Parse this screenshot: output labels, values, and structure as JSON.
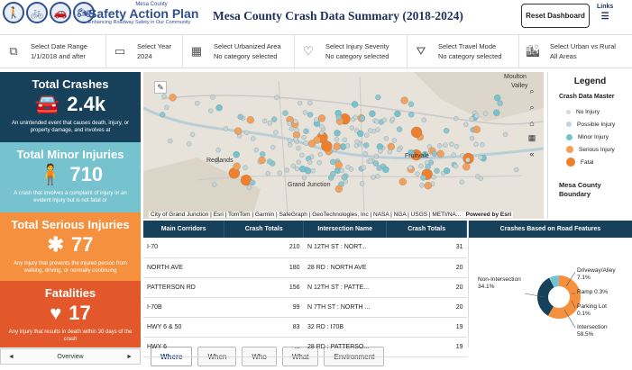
{
  "header": {
    "county_small": "Mesa County",
    "brand_title": "Safety Action Plan",
    "brand_tagline": "Enhancing Roadway Safety in Our Community",
    "page_title": "Mesa County Crash Data Summary (2018-2024)",
    "reset_label": "Reset Dashboard",
    "links_label": "Links"
  },
  "filters": [
    {
      "label": "Select Date Range",
      "value": "1/1/2018 and after",
      "icon": "calendar-range-icon"
    },
    {
      "label": "Select Year",
      "value": "2024",
      "icon": "calendar-icon"
    },
    {
      "label": "Select Urbanized Area",
      "value": "No category selected",
      "icon": "building-icon"
    },
    {
      "label": "Select Injury Severity",
      "value": "No category selected",
      "icon": "heartbeat-icon"
    },
    {
      "label": "Select Travel Mode",
      "value": "No category selected",
      "icon": "road-icon"
    },
    {
      "label": "Select Urban vs Rural",
      "value": "All Areas",
      "icon": "city-icon"
    }
  ],
  "kpis": [
    {
      "title": "Total Crashes",
      "value": "2.4k",
      "icon": "car-crash-icon",
      "desc": "An unintended event that causes death, injury, or property damage, and involves at",
      "color": "#17405a"
    },
    {
      "title": "Total Minor Injuries",
      "value": "710",
      "icon": "person-injury-icon",
      "desc": "A crash that involves a complaint of injury or an evident injury but is not fatal or",
      "color": "#77c2cf"
    },
    {
      "title": "Total Serious Injuries",
      "value": "77",
      "icon": "asterisk-icon",
      "desc": "Any injury that prevents the injured person from walking, driving, or normally continuing",
      "color": "#f5903e"
    },
    {
      "title": "Fatalities",
      "value": "17",
      "icon": "heart-break-icon",
      "desc": "Any injury that results in death within 30 days of the crash",
      "color": "#e2582a"
    }
  ],
  "nav": {
    "overview_label": "Overview",
    "prev": "◄",
    "next": "►"
  },
  "tabs": [
    "Where",
    "When",
    "Who",
    "What",
    "Environment"
  ],
  "map": {
    "credit": "City of Grand Junction | Esri | TomTom | Garmin | SafeGraph | GeoTechnologies, Inc | NASA | NGA | USGS | METI/NA...",
    "powered": "Powered by Esri",
    "labels": [
      "Moulton",
      "Valley",
      "Redlands",
      "Fruitvale",
      "Grand Junction"
    ]
  },
  "legend": {
    "title": "Legend",
    "subtitle": "Crash Data Master",
    "items": [
      {
        "label": "No Injury",
        "color": "#d9d9d9",
        "size": 5
      },
      {
        "label": "Possible Injury",
        "color": "#bcd6da",
        "size": 6
      },
      {
        "label": "Minor Injury",
        "color": "#77c2cf",
        "size": 7
      },
      {
        "label": "Serious Injury",
        "color": "#f5a05a",
        "size": 8
      },
      {
        "label": "Fatal",
        "color": "#f07f2c",
        "size": 10
      }
    ],
    "boundary": "Mesa County Boundary"
  },
  "corridors": {
    "headers": [
      "Main Corridors",
      "Crash Totals"
    ],
    "rows": [
      [
        "I-70",
        "210"
      ],
      [
        "NORTH AVE",
        "180"
      ],
      [
        "PATTERSON RD",
        "156"
      ],
      [
        "I-70B",
        "99"
      ],
      [
        "HWY 6 & 50",
        "83"
      ],
      [
        "HWY 6",
        "..."
      ]
    ]
  },
  "intersections": {
    "headers": [
      "Intersection Name",
      "Crash Totals"
    ],
    "rows": [
      [
        "N 12TH ST : NORT...",
        "31"
      ],
      [
        "28 RD : NORTH AVE",
        "20"
      ],
      [
        "N 12TH ST : PATTE...",
        "20"
      ],
      [
        "N 7TH ST : NORTH ...",
        "20"
      ],
      [
        "32 RD : I70B",
        "19"
      ],
      [
        "28 RD : PATTERSO...",
        "19"
      ]
    ]
  },
  "chart_data": {
    "type": "pie",
    "title": "Crashes Based on Road Features",
    "categories": [
      "Intersection",
      "Non-Intersection",
      "Driveway/Alley",
      "Ramp",
      "Parking Lot"
    ],
    "values": [
      58.5,
      34.1,
      7.1,
      0.3,
      0.1
    ],
    "labels": [
      "Intersection\n58.5%",
      "Non-\nIntersection\n34.1%",
      "Driveway/Alley\n7.1%",
      "Ramp 0.3%",
      "Parking Lot\n0.1%"
    ],
    "colors": [
      "#f5903e",
      "#17405a",
      "#77c2cf",
      "#9cc7d9",
      "#e2582a"
    ]
  }
}
